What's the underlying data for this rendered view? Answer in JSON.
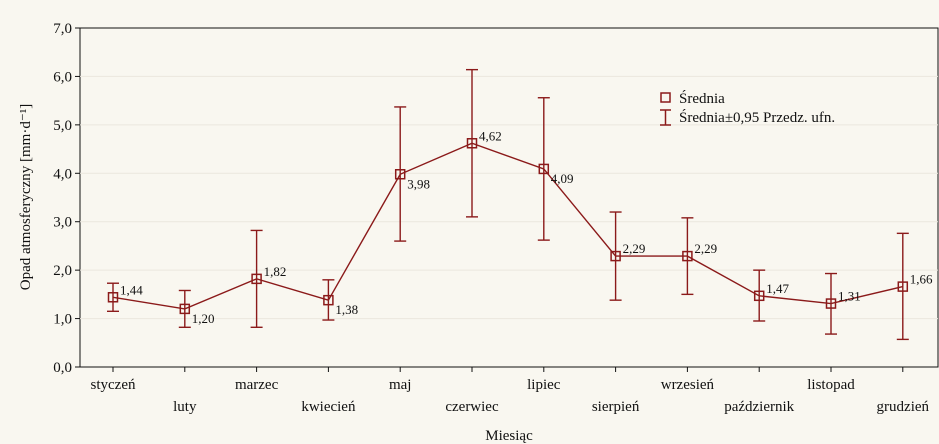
{
  "chart_data": {
    "type": "line",
    "title": "",
    "xlabel": "Miesiąc",
    "ylabel": "Opad atmosferyczny [mm·d⁻¹]",
    "ylim": [
      0,
      7
    ],
    "y_ticks": [
      "0,0",
      "1,0",
      "2,0",
      "3,0",
      "4,0",
      "5,0",
      "6,0",
      "7,0"
    ],
    "grid": false,
    "legend_position": "top-right",
    "categories": [
      "styczeń",
      "luty",
      "marzec",
      "kwiecień",
      "maj",
      "czerwiec",
      "lipiec",
      "sierpień",
      "wrzesień",
      "październik",
      "listopad",
      "grudzień"
    ],
    "series": [
      {
        "name": "Średnia",
        "values": [
          1.44,
          1.2,
          1.82,
          1.38,
          3.98,
          4.62,
          4.09,
          2.29,
          2.29,
          1.47,
          1.31,
          1.66
        ],
        "value_labels": [
          "1,44",
          "1,20",
          "1,82",
          "1,38",
          "3,98",
          "4,62",
          "4,09",
          "2,29",
          "2,29",
          "1,47",
          "1,31",
          "1,66"
        ]
      }
    ],
    "error_bars": {
      "name": "Średnia±0,95 Przedz. ufn.",
      "lower": [
        1.15,
        0.82,
        0.82,
        0.97,
        2.6,
        3.1,
        2.62,
        1.38,
        1.5,
        0.95,
        0.68,
        0.57
      ],
      "upper": [
        1.73,
        1.58,
        2.82,
        1.8,
        5.37,
        6.14,
        5.56,
        3.2,
        3.08,
        2.0,
        1.93,
        2.76
      ]
    },
    "colors": {
      "series": "#8b1a1a",
      "background": "#f9f7f0",
      "grid": "#ebe7de",
      "axis": "#111111"
    }
  }
}
